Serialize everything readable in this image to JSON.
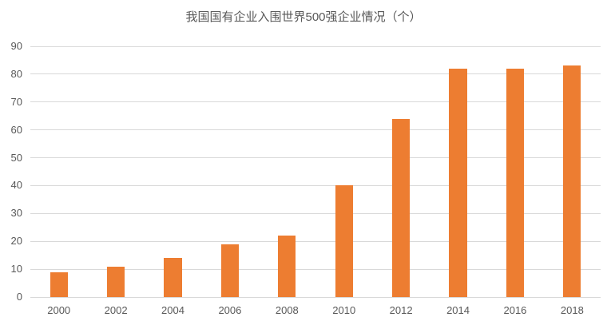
{
  "chart_data": {
    "type": "bar",
    "title": "我国国有企业入围世界500强企业情况（个）",
    "categories": [
      "2000",
      "2002",
      "2004",
      "2006",
      "2008",
      "2010",
      "2012",
      "2014",
      "2016",
      "2018"
    ],
    "values": [
      9,
      11,
      14,
      19,
      22,
      40,
      64,
      82,
      82,
      83
    ],
    "xlabel": "",
    "ylabel": "",
    "ylim": [
      0,
      90
    ],
    "ytick_step": 10,
    "grid": true,
    "legend": false,
    "colors": {
      "bar": "#ED7D31",
      "gridline": "#D9D9D9",
      "axis_text": "#595959",
      "title_text": "#595959",
      "background": "#FFFFFF"
    }
  }
}
